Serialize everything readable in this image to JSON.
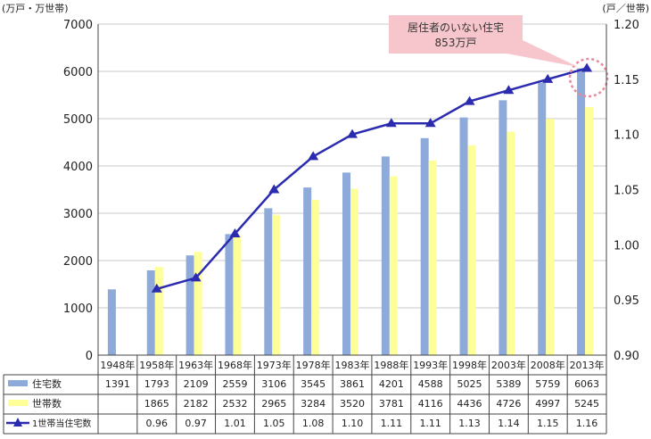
{
  "chart_data": {
    "type": "bar",
    "left_unit_label": "(万戸・万世帯)",
    "right_unit_label": "(戸／世帯)",
    "categories": [
      "1948年",
      "1958年",
      "1963年",
      "1968年",
      "1973年",
      "1978年",
      "1983年",
      "1988年",
      "1993年",
      "1998年",
      "2003年",
      "2008年",
      "2013年"
    ],
    "left_axis": {
      "min": 0,
      "max": 7000,
      "ticks": [
        0,
        1000,
        2000,
        3000,
        4000,
        5000,
        6000,
        7000
      ]
    },
    "right_axis": {
      "min": 0.9,
      "max": 1.2,
      "ticks": [
        "0.90",
        "0.95",
        "1.00",
        "1.05",
        "1.10",
        "1.15",
        "1.20"
      ]
    },
    "series": [
      {
        "name": "住宅数",
        "kind": "bar",
        "axis": "left",
        "color": "#8eaadb",
        "values": [
          1391,
          1793,
          2109,
          2559,
          3106,
          3545,
          3861,
          4201,
          4588,
          5025,
          5389,
          5759,
          6063
        ],
        "labels": [
          "1391",
          "1793",
          "2109",
          "2559",
          "3106",
          "3545",
          "3861",
          "4201",
          "4588",
          "5025",
          "5389",
          "5759",
          "6063"
        ]
      },
      {
        "name": "世帯数",
        "kind": "bar",
        "axis": "left",
        "color": "#ffff99",
        "values": [
          null,
          1865,
          2182,
          2532,
          2965,
          3284,
          3520,
          3781,
          4116,
          4436,
          4726,
          4997,
          5245
        ],
        "labels": [
          "",
          "1865",
          "2182",
          "2532",
          "2965",
          "3284",
          "3520",
          "3781",
          "4116",
          "4436",
          "4726",
          "4997",
          "5245"
        ]
      },
      {
        "name": "1世帯当住宅数",
        "kind": "line",
        "axis": "right",
        "color": "#2b2bb0",
        "values": [
          null,
          0.96,
          0.97,
          1.01,
          1.05,
          1.08,
          1.1,
          1.11,
          1.11,
          1.13,
          1.14,
          1.15,
          1.16
        ],
        "labels": [
          "",
          "0.96",
          "0.97",
          "1.01",
          "1.05",
          "1.08",
          "1.10",
          "1.11",
          "1.11",
          "1.13",
          "1.14",
          "1.15",
          "1.16"
        ]
      }
    ],
    "callout": {
      "line1": "居住者のいない住宅",
      "line2": "853万戸",
      "bg_color": "#f7c6cc",
      "ring_color": "#e88a9a"
    },
    "grid": true,
    "legend": "table-below"
  }
}
